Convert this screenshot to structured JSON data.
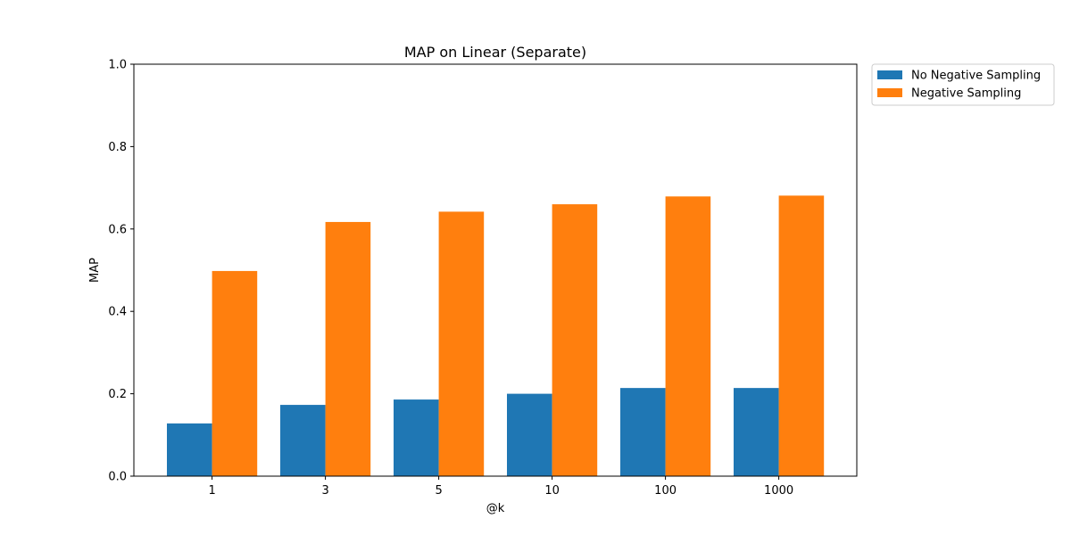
{
  "chart_data": {
    "type": "bar",
    "title": "MAP on Linear (Separate)",
    "xlabel": "@k",
    "ylabel": "MAP",
    "categories": [
      "1",
      "3",
      "5",
      "10",
      "100",
      "1000"
    ],
    "ylim": [
      0,
      1.0
    ],
    "yticks": [
      "0.0",
      "0.2",
      "0.4",
      "0.6",
      "0.8",
      "1.0"
    ],
    "grid": false,
    "legend_position": "outside-top-right",
    "series": [
      {
        "name": "No Negative Sampling",
        "color": "#1f77b4",
        "values": [
          0.128,
          0.173,
          0.186,
          0.2,
          0.214,
          0.214
        ]
      },
      {
        "name": "Negative Sampling",
        "color": "#ff7f0e",
        "values": [
          0.498,
          0.617,
          0.642,
          0.66,
          0.679,
          0.681
        ]
      }
    ]
  }
}
